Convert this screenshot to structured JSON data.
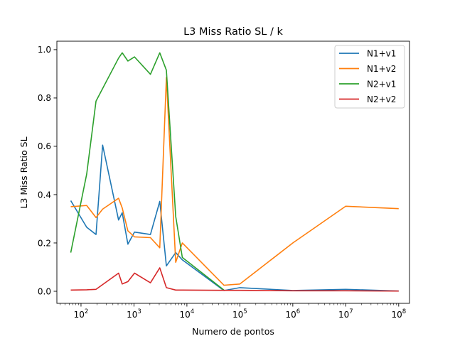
{
  "chart_data": {
    "type": "line",
    "title": "L3 Miss Ratio SL / k",
    "xlabel": "Numero de pontos",
    "ylabel": "L3 Miss Ratio SL",
    "xscale": "log",
    "xlim": [
      35,
      160000000
    ],
    "ylim": [
      -0.05,
      1.035
    ],
    "x_major_ticks": [
      {
        "value": 100,
        "base": "10",
        "exp": "2"
      },
      {
        "value": 1000,
        "base": "10",
        "exp": "3"
      },
      {
        "value": 10000,
        "base": "10",
        "exp": "4"
      },
      {
        "value": 100000,
        "base": "10",
        "exp": "5"
      },
      {
        "value": 1000000,
        "base": "10",
        "exp": "6"
      },
      {
        "value": 10000000,
        "base": "10",
        "exp": "7"
      },
      {
        "value": 100000000,
        "base": "10",
        "exp": "8"
      }
    ],
    "y_ticks": [
      {
        "value": 0.0,
        "label": "0.0"
      },
      {
        "value": 0.2,
        "label": "0.2"
      },
      {
        "value": 0.4,
        "label": "0.4"
      },
      {
        "value": 0.6,
        "label": "0.6"
      },
      {
        "value": 0.8,
        "label": "0.8"
      },
      {
        "value": 1.0,
        "label": "1.0"
      }
    ],
    "legend_position": "top-right",
    "series": [
      {
        "name": "N1+v1",
        "color": "#1f77b4",
        "x": [
          64,
          128,
          192,
          256,
          512,
          600,
          768,
          1024,
          2048,
          3072,
          4096,
          6144,
          8192,
          50000,
          100000,
          1000000,
          10000000,
          100000000
        ],
        "y": [
          0.375,
          0.265,
          0.235,
          0.605,
          0.295,
          0.325,
          0.195,
          0.245,
          0.235,
          0.372,
          0.105,
          0.16,
          0.13,
          0.003,
          0.015,
          0.003,
          0.008,
          0.001
        ]
      },
      {
        "name": "N1+v2",
        "color": "#ff7f0e",
        "x": [
          64,
          128,
          192,
          256,
          512,
          600,
          768,
          1024,
          2048,
          3072,
          4096,
          6144,
          8192,
          50000,
          100000,
          1000000,
          10000000,
          100000000
        ],
        "y": [
          0.35,
          0.355,
          0.305,
          0.34,
          0.385,
          0.345,
          0.25,
          0.225,
          0.222,
          0.18,
          0.885,
          0.12,
          0.2,
          0.025,
          0.03,
          0.2,
          0.352,
          0.342
        ]
      },
      {
        "name": "N2+v1",
        "color": "#2ca02c",
        "x": [
          64,
          128,
          192,
          512,
          600,
          768,
          1024,
          2048,
          3072,
          4096,
          6144,
          8192,
          50000
        ],
        "y": [
          0.16,
          0.485,
          0.787,
          0.965,
          0.987,
          0.953,
          0.97,
          0.898,
          0.987,
          0.915,
          0.31,
          0.14,
          0.005
        ]
      },
      {
        "name": "N2+v2",
        "color": "#d62728",
        "x": [
          64,
          128,
          192,
          512,
          600,
          768,
          1024,
          2048,
          3072,
          4096,
          6144,
          8192,
          50000,
          100000,
          1000000,
          10000000,
          100000000
        ],
        "y": [
          0.005,
          0.006,
          0.008,
          0.075,
          0.03,
          0.04,
          0.075,
          0.035,
          0.097,
          0.015,
          0.005,
          0.005,
          0.004,
          0.004,
          0.002,
          0.002,
          0.001
        ]
      }
    ]
  }
}
